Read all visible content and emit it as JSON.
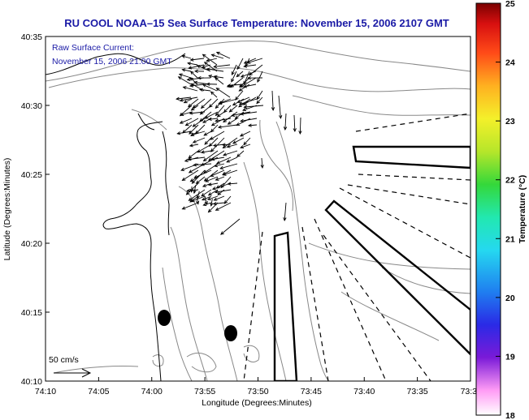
{
  "title": "RU COOL  NOAA–15  Sea Surface Temperature:  November 15, 2006 2107 GMT",
  "annotation": {
    "line1": "Raw Surface Current:",
    "line2": "November 15, 2006 21:00 GMT"
  },
  "axes": {
    "xlabel": "Longitude (Degrees:Minutes)",
    "ylabel": "Latitude (Degrees:Minutes)",
    "x_ticks": [
      "74:10",
      "74:05",
      "74:00",
      "73:55",
      "73:50",
      "73:45",
      "73:40",
      "73:35",
      "73:3"
    ],
    "y_ticks": [
      "40:35",
      "40:30",
      "40:25",
      "40:20",
      "40:15",
      "40:10"
    ]
  },
  "scale": {
    "label": "50 cm/s"
  },
  "colorbar": {
    "label": "Temperature (°C)",
    "ticks": [
      "25",
      "24",
      "23",
      "22",
      "21",
      "20",
      "19",
      "18"
    ],
    "min": 18,
    "max": 25
  },
  "colors": {
    "title": "#1a1aa6",
    "coast": "#000000",
    "bathymetry": "#888888",
    "vectors": "#000000"
  }
}
